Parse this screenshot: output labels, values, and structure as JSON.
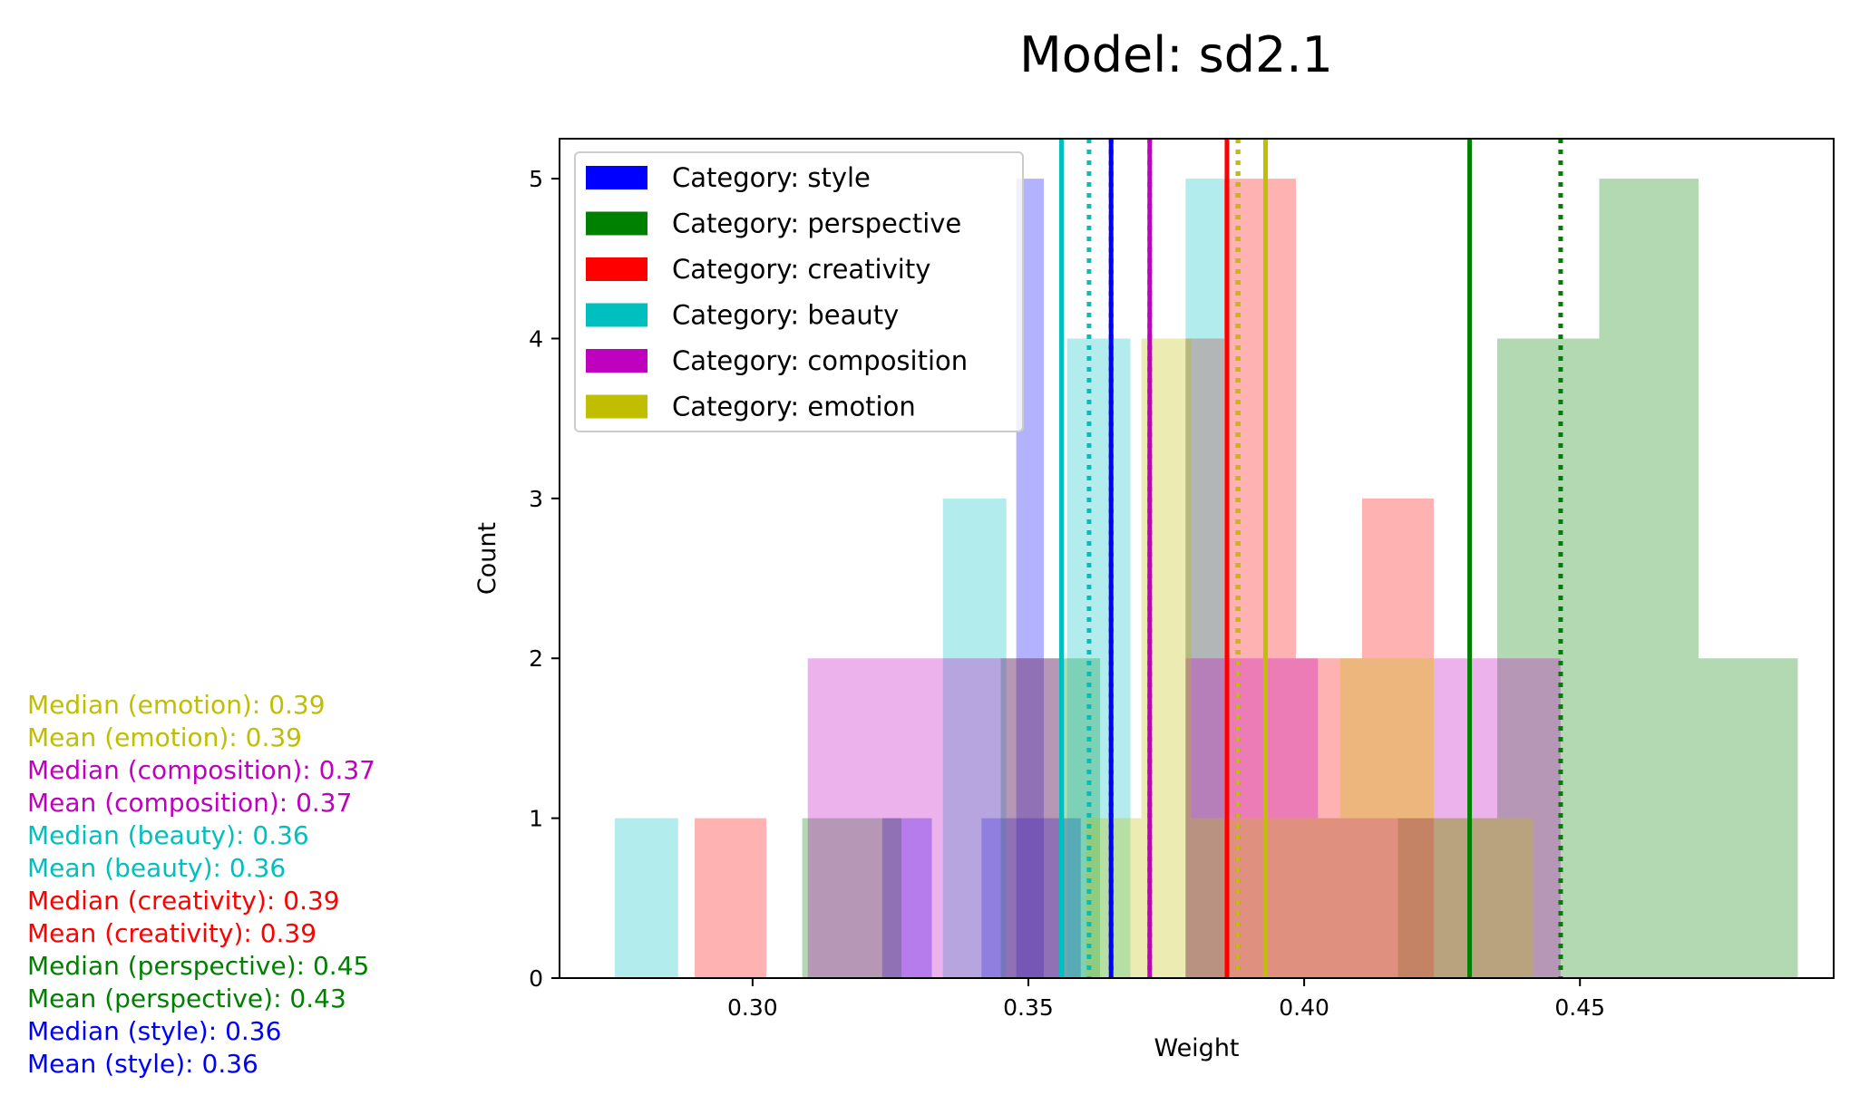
{
  "chart_data": {
    "type": "histogram",
    "title": "Model: sd2.1",
    "xlabel": "Weight",
    "ylabel": "Count",
    "xlim": [
      0.265,
      0.496
    ],
    "ylim": [
      0,
      5.25
    ],
    "xticks": [
      0.3,
      0.35,
      0.4,
      0.45
    ],
    "xtick_labels": [
      "0.30",
      "0.35",
      "0.40",
      "0.45"
    ],
    "yticks": [
      0,
      1,
      2,
      3,
      4,
      5
    ],
    "ytick_labels": [
      "0",
      "1",
      "2",
      "3",
      "4",
      "5"
    ],
    "grid": false,
    "legend_position": "top-left",
    "series": [
      {
        "key": "style",
        "name": "Category: style",
        "color": "#0000ff",
        "bins": [
          [
            0.3235,
            0.3325,
            1
          ],
          [
            0.3415,
            0.3505,
            1
          ],
          [
            0.3478,
            0.3528,
            5
          ],
          [
            0.3505,
            0.3595,
            1
          ]
        ],
        "mean": 0.365,
        "median": 0.365
      },
      {
        "key": "perspective",
        "name": "Category: perspective",
        "color": "#008000",
        "bins": [
          [
            0.309,
            0.327,
            1
          ],
          [
            0.345,
            0.363,
            2
          ],
          [
            0.417,
            0.435,
            1
          ],
          [
            0.435,
            0.4535,
            4
          ],
          [
            0.4535,
            0.4715,
            5
          ],
          [
            0.4715,
            0.4895,
            2
          ]
        ],
        "mean": 0.43,
        "median": 0.4465
      },
      {
        "key": "creativity",
        "name": "Category: creativity",
        "color": "#ff0000",
        "bins": [
          [
            0.2895,
            0.3025,
            1
          ],
          [
            0.3785,
            0.3855,
            4
          ],
          [
            0.3855,
            0.3985,
            5
          ],
          [
            0.3985,
            0.4105,
            2
          ],
          [
            0.4105,
            0.4235,
            3
          ]
        ],
        "mean": 0.386,
        "median": 0.388
      },
      {
        "key": "beauty",
        "name": "Category: beauty",
        "color": "#00bfbf",
        "bins": [
          [
            0.275,
            0.2865,
            1
          ],
          [
            0.3345,
            0.346,
            3
          ],
          [
            0.357,
            0.3685,
            4
          ],
          [
            0.3785,
            0.3855,
            5
          ]
        ],
        "mean": 0.356,
        "median": 0.361
      },
      {
        "key": "composition",
        "name": "Category: composition",
        "color": "#bf00bf",
        "bins": [
          [
            0.31,
            0.3445,
            2
          ],
          [
            0.3445,
            0.3565,
            2
          ],
          [
            0.3785,
            0.4025,
            2
          ],
          [
            0.4025,
            0.4235,
            1
          ],
          [
            0.4235,
            0.4465,
            2
          ]
        ],
        "mean": 0.372,
        "median": 0.372
      },
      {
        "key": "emotion",
        "name": "Category: emotion",
        "color": "#bfbf00",
        "bins": [
          [
            0.3605,
            0.3705,
            1
          ],
          [
            0.3705,
            0.3795,
            4
          ],
          [
            0.3795,
            0.4065,
            1
          ],
          [
            0.4065,
            0.4235,
            2
          ],
          [
            0.4235,
            0.4415,
            1
          ]
        ],
        "mean": 0.393,
        "median": 0.388
      }
    ],
    "annotations": [
      {
        "text": "Median (emotion): 0.39",
        "color": "#bfbf00"
      },
      {
        "text": "Mean (emotion): 0.39",
        "color": "#bfbf00"
      },
      {
        "text": "Median (composition): 0.37",
        "color": "#bf00bf"
      },
      {
        "text": "Mean (composition): 0.37",
        "color": "#bf00bf"
      },
      {
        "text": "Median (beauty): 0.36",
        "color": "#00bfbf"
      },
      {
        "text": "Mean (beauty): 0.36",
        "color": "#00bfbf"
      },
      {
        "text": "Median (creativity): 0.39",
        "color": "#ff0000"
      },
      {
        "text": "Mean (creativity): 0.39",
        "color": "#ff0000"
      },
      {
        "text": "Median (perspective): 0.45",
        "color": "#008000"
      },
      {
        "text": "Mean (perspective): 0.43",
        "color": "#008000"
      },
      {
        "text": "Median (style): 0.36",
        "color": "#0000ff"
      },
      {
        "text": "Mean (style): 0.36",
        "color": "#0000ff"
      }
    ]
  }
}
